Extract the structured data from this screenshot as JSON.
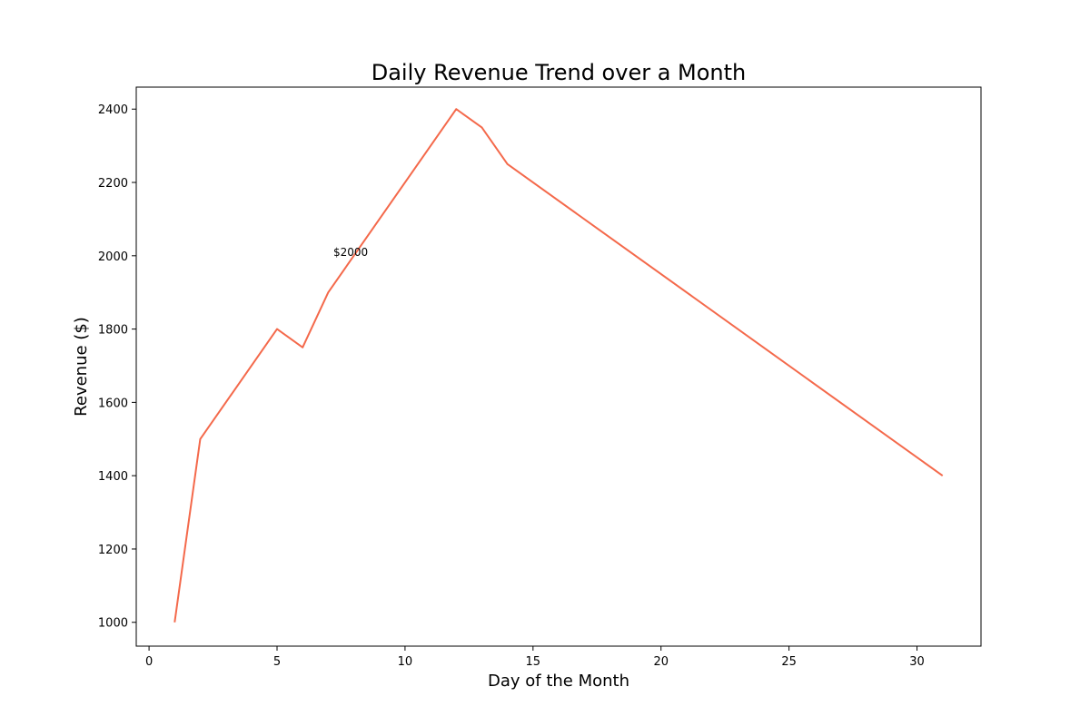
{
  "chart_data": {
    "type": "line",
    "title": "Daily Revenue Trend over a Month",
    "xlabel": "Day of the Month",
    "ylabel": "Revenue ($)",
    "xlim": [
      -0.5,
      32.5
    ],
    "ylim": [
      935,
      2460
    ],
    "xticks": [
      0,
      5,
      10,
      15,
      20,
      25,
      30
    ],
    "yticks": [
      1000,
      1200,
      1400,
      1600,
      1800,
      2000,
      2200,
      2400
    ],
    "grid": false,
    "legend": "none",
    "series": [
      {
        "color": "#f4694b",
        "x": [
          1,
          2,
          5,
          6,
          7,
          12,
          13,
          14,
          31
        ],
        "y": [
          1000,
          1500,
          1800,
          1750,
          1900,
          2400,
          2350,
          2250,
          1400
        ]
      }
    ],
    "annotations": [
      {
        "text": "$2000",
        "x": 7.2,
        "y": 2000
      }
    ]
  }
}
